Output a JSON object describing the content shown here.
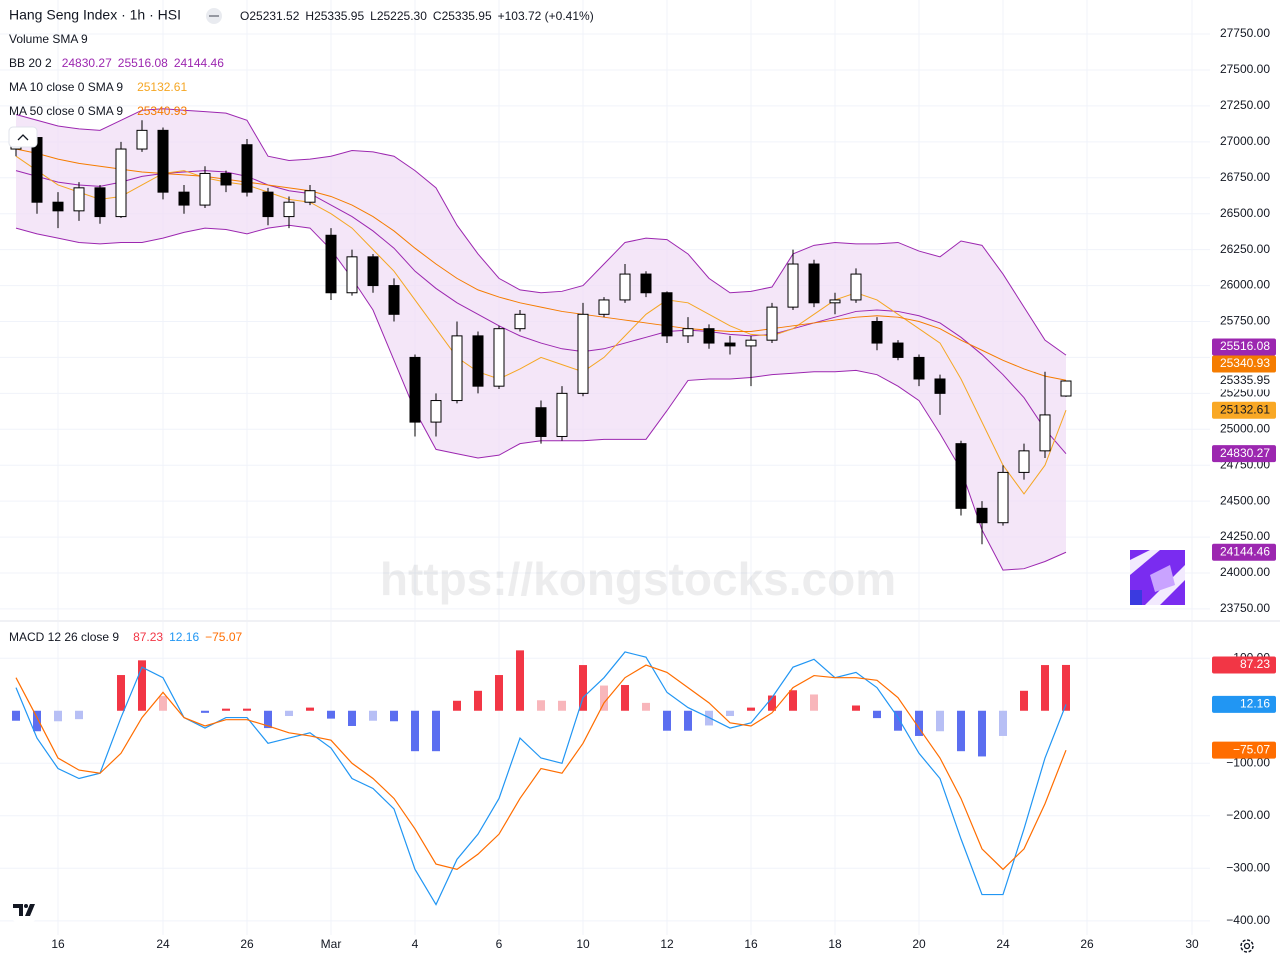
{
  "header": {
    "title": "Hang Seng Index · 1h · HSI",
    "ohlc": [
      {
        "label": "O",
        "value": "25231.52"
      },
      {
        "label": "H",
        "value": "25335.95"
      },
      {
        "label": "L",
        "value": "25225.30"
      },
      {
        "label": "C",
        "value": "25335.95"
      }
    ],
    "change": "+103.72 (+0.41%)"
  },
  "watermark": "https://kongstocks.com",
  "chart_data": [
    {
      "type": "candlestick",
      "volume_label": "Volume SMA 9",
      "categories": [
        null,
        null,
        "16",
        null,
        null,
        null,
        null,
        "24",
        null,
        null,
        null,
        "26",
        null,
        null,
        null,
        "Mar",
        null,
        null,
        null,
        "4",
        null,
        null,
        null,
        "6",
        null,
        null,
        null,
        "10",
        null,
        null,
        null,
        "12",
        null,
        null,
        null,
        "16",
        null,
        null,
        null,
        "18",
        null,
        null,
        null,
        "20",
        null,
        null,
        null,
        "24",
        null,
        null,
        null,
        "26",
        null,
        null,
        null,
        null,
        "30"
      ],
      "open": [
        26950,
        27030,
        26580,
        26520,
        26680,
        26480,
        26950,
        27080,
        26650,
        26560,
        26780,
        26980,
        26650,
        26480,
        26580,
        26350,
        25950,
        26200,
        26000,
        25500,
        25050,
        25200,
        25650,
        25300,
        25700,
        25150,
        24950,
        25250,
        25800,
        25900,
        26080,
        25950,
        25650,
        25700,
        25600,
        25580,
        25620,
        25850,
        26150,
        25880,
        25900,
        25750,
        25600,
        25500,
        25350,
        24900,
        24450,
        24350,
        24700,
        24850,
        25231.52,
        null,
        null,
        null,
        null,
        null,
        null
      ],
      "high": [
        27080,
        27050,
        26650,
        26720,
        26700,
        27000,
        27150,
        27100,
        26700,
        26830,
        26800,
        27020,
        26680,
        26620,
        26700,
        26400,
        26250,
        26220,
        26050,
        25520,
        25250,
        25750,
        25680,
        25720,
        25830,
        25200,
        25300,
        25880,
        25920,
        26150,
        26100,
        25960,
        25780,
        25730,
        25650,
        25650,
        25880,
        26250,
        26180,
        25950,
        26120,
        25780,
        25620,
        25520,
        25380,
        24920,
        24500,
        24750,
        24900,
        25400,
        25335.95,
        null,
        null,
        null,
        null,
        null,
        null
      ],
      "low": [
        26900,
        26500,
        26400,
        26450,
        26430,
        26470,
        26930,
        26600,
        26500,
        26540,
        26650,
        26620,
        26420,
        26400,
        26560,
        25900,
        25930,
        25950,
        25750,
        24950,
        24950,
        25180,
        25250,
        25280,
        25680,
        24900,
        24920,
        25230,
        25780,
        25880,
        25920,
        25600,
        25600,
        25560,
        25520,
        25300,
        25600,
        25830,
        25850,
        25800,
        25880,
        25550,
        25480,
        25300,
        25100,
        24400,
        24200,
        24330,
        24650,
        24800,
        25225.3,
        null,
        null,
        null,
        null,
        null,
        null
      ],
      "close": [
        27030,
        26580,
        26520,
        26680,
        26480,
        26950,
        27080,
        26650,
        26560,
        26780,
        26700,
        26650,
        26480,
        26580,
        26660,
        25950,
        26200,
        26000,
        25800,
        25050,
        25200,
        25650,
        25300,
        25700,
        25800,
        24950,
        25250,
        25800,
        25900,
        26080,
        25950,
        25650,
        25700,
        25600,
        25580,
        25620,
        25850,
        26150,
        25880,
        25900,
        26080,
        25600,
        25500,
        25350,
        25250,
        24450,
        24350,
        24700,
        24850,
        25100,
        25335.95,
        null,
        null,
        null,
        null,
        null,
        null
      ],
      "up_color": "#ffffff",
      "down_color": "#000000",
      "border_color": "#000000",
      "bands": {
        "name": "BB 20 2",
        "color": "#9c27b0",
        "fill": "#f0dcf5",
        "legend_values": [
          "24830.27",
          "25516.08",
          "24144.46"
        ],
        "basis": [
          26800,
          26760,
          26720,
          26700,
          26690,
          26720,
          26760,
          26780,
          26790,
          26800,
          26790,
          26760,
          26700,
          26660,
          26640,
          26560,
          26480,
          26380,
          26260,
          26100,
          25980,
          25880,
          25800,
          25720,
          25650,
          25600,
          25560,
          25540,
          25560,
          25600,
          25640,
          25680,
          25690,
          25680,
          25660,
          25650,
          25660,
          25700,
          25740,
          25780,
          25820,
          25830,
          25820,
          25790,
          25740,
          25640,
          25520,
          25380,
          25220,
          25000,
          24830.27,
          null,
          null,
          null,
          null,
          null,
          null
        ],
        "upper": [
          27190,
          27150,
          27110,
          27090,
          27080,
          27150,
          27220,
          27230,
          27220,
          27210,
          27200,
          27150,
          26900,
          26870,
          26880,
          26900,
          26940,
          26930,
          26900,
          26800,
          26680,
          26420,
          26220,
          26050,
          25970,
          25950,
          25960,
          26000,
          26150,
          26300,
          26330,
          26320,
          26220,
          26050,
          25950,
          25960,
          25990,
          26220,
          26280,
          26300,
          26290,
          26290,
          26300,
          26240,
          26200,
          26310,
          26280,
          26080,
          25850,
          25620,
          25516.08,
          null,
          null,
          null,
          null,
          null,
          null
        ],
        "lower": [
          26400,
          26360,
          26330,
          26300,
          26290,
          26300,
          26300,
          26330,
          26370,
          26400,
          26390,
          26360,
          26400,
          26420,
          26400,
          26250,
          26050,
          25830,
          25480,
          25130,
          24860,
          24830,
          24800,
          24820,
          24900,
          24920,
          24920,
          24920,
          24930,
          24930,
          24930,
          25130,
          25340,
          25350,
          25350,
          25360,
          25380,
          25390,
          25400,
          25400,
          25410,
          25380,
          25300,
          25200,
          24970,
          24720,
          24300,
          24020,
          24030,
          24080,
          24144.46,
          null,
          null,
          null,
          null,
          null,
          null
        ]
      },
      "series": [
        {
          "name": "MA 10 close 0 SMA 9",
          "color": "#f5a623",
          "legend_value": "25132.61",
          "values": [
            26900,
            26800,
            26700,
            26650,
            26600,
            26620,
            26700,
            26780,
            26800,
            26750,
            26720,
            26700,
            26650,
            26600,
            26580,
            26500,
            26400,
            26250,
            26100,
            25900,
            25700,
            25500,
            25400,
            25350,
            25420,
            25500,
            25450,
            25400,
            25500,
            25650,
            25800,
            25900,
            25880,
            25800,
            25720,
            25660,
            25650,
            25700,
            25800,
            25900,
            25950,
            25900,
            25800,
            25700,
            25600,
            25350,
            25050,
            24750,
            24550,
            24750,
            25132.61,
            null,
            null,
            null,
            null,
            null,
            null
          ]
        },
        {
          "name": "MA 50 close 0 SMA 9",
          "color": "#f57c00",
          "legend_value": "25340.93",
          "values": [
            26950,
            26920,
            26880,
            26850,
            26830,
            26810,
            26790,
            26780,
            26770,
            26760,
            26740,
            26720,
            26700,
            26680,
            26660,
            26620,
            26560,
            26480,
            26380,
            26260,
            26150,
            26050,
            25970,
            25920,
            25880,
            25850,
            25820,
            25800,
            25780,
            25760,
            25740,
            25720,
            25700,
            25690,
            25680,
            25680,
            25700,
            25720,
            25740,
            25760,
            25780,
            25790,
            25780,
            25750,
            25700,
            25620,
            25550,
            25480,
            25420,
            25370,
            25340.93,
            null,
            null,
            null,
            null,
            null,
            null
          ]
        }
      ],
      "ylim": [
        23673,
        27987
      ],
      "yticks": [
        {
          "value": 27750,
          "label": "27750.00"
        },
        {
          "value": 27500,
          "label": "27500.00"
        },
        {
          "value": 27250,
          "label": "27250.00"
        },
        {
          "value": 27000,
          "label": "27000.00"
        },
        {
          "value": 26750,
          "label": "26750.00"
        },
        {
          "value": 26500,
          "label": "26500.00"
        },
        {
          "value": 26250,
          "label": "26250.00"
        },
        {
          "value": 26000,
          "label": "26000.00"
        },
        {
          "value": 25750,
          "label": "25750.00"
        },
        {
          "value": 25500,
          "label": "25500.00"
        },
        {
          "value": 25250,
          "label": "25250.00"
        },
        {
          "value": 25000,
          "label": "25000.00"
        },
        {
          "value": 24750,
          "label": "24750.00"
        },
        {
          "value": 24500,
          "label": "24500.00"
        },
        {
          "value": 24250,
          "label": "24250.00"
        },
        {
          "value": 24000,
          "label": "24000.00"
        },
        {
          "value": 23750,
          "label": "23750.00"
        }
      ],
      "grid": true,
      "axis_labels": [
        {
          "value": 25516.08,
          "label": "25516.08",
          "bg": "#9c27b0",
          "fg": "#ffffff"
        },
        {
          "value": 25340.93,
          "label": "25340.93",
          "bg": "#f57c00",
          "fg": "#ffffff"
        },
        {
          "value": 25335.95,
          "label": "25335.95",
          "bg": "#ffffff",
          "fg": "#131722"
        },
        {
          "value": 25132.61,
          "label": "25132.61",
          "bg": "#f9a825",
          "fg": "#131722"
        },
        {
          "value": 24830.27,
          "label": "24830.27",
          "bg": "#9c27b0",
          "fg": "#ffffff"
        },
        {
          "value": 24144.46,
          "label": "24144.46",
          "bg": "#9c27b0",
          "fg": "#ffffff"
        }
      ]
    },
    {
      "type": "macd",
      "title": "MACD 12 26 close 9",
      "legend_values": [
        {
          "label": "87.23",
          "color": "#f23645"
        },
        {
          "label": "12.16",
          "color": "#2196f3"
        },
        {
          "label": "−75.07",
          "color": "#ff6d00"
        }
      ],
      "histogram": {
        "colors": [
          "#f23645",
          "#f8b6bb",
          "#5b6ef0",
          "#b7bff5"
        ],
        "values": [
          -19,
          -39,
          -20,
          -16,
          0,
          68,
          96,
          28,
          0,
          -4,
          4,
          4,
          -33,
          -10,
          6,
          -15,
          -29,
          -19,
          -20,
          -77,
          -77,
          19,
          38,
          68,
          115,
          20,
          19,
          87,
          48,
          49,
          15,
          -38,
          -38,
          -28,
          -10,
          6,
          29,
          39,
          31,
          0,
          10,
          -14,
          -38,
          -48,
          -39,
          -77,
          -87,
          -48,
          38,
          87,
          87.23,
          null,
          null,
          null,
          null,
          null,
          null
        ]
      },
      "series": [
        {
          "color": "#2196f3",
          "values": [
            44,
            -52,
            -110,
            -129,
            -119,
            -13,
            83,
            63,
            -13,
            -33,
            -13,
            -13,
            -62,
            -52,
            -42,
            -71,
            -129,
            -148,
            -187,
            -302,
            -369,
            -283,
            -235,
            -167,
            -52,
            -90,
            -100,
            25,
            63,
            112,
            102,
            35,
            6,
            -13,
            -33,
            -23,
            25,
            83,
            98,
            63,
            73,
            44,
            -13,
            -81,
            -129,
            -244,
            -350,
            -350,
            -225,
            -90,
            12.16,
            null,
            null,
            null,
            null,
            null,
            null
          ]
        },
        {
          "color": "#ff6d00",
          "values": [
            63,
            -13,
            -90,
            -113,
            -119,
            -81,
            -13,
            35,
            -13,
            -29,
            -17,
            -17,
            -29,
            -42,
            -48,
            -56,
            -100,
            -129,
            -167,
            -225,
            -292,
            -302,
            -273,
            -235,
            -167,
            -110,
            -119,
            -62,
            15,
            63,
            87,
            73,
            44,
            15,
            -23,
            -29,
            -4,
            44,
            67,
            63,
            63,
            58,
            25,
            -33,
            -90,
            -167,
            -263,
            -302,
            -263,
            -177,
            -75.07,
            null,
            null,
            null,
            null,
            null,
            null
          ]
        }
      ],
      "ylim": [
        -427,
        169
      ],
      "yticks": [
        {
          "value": 100,
          "label": "100.00"
        },
        {
          "value": -100,
          "label": "−100.00"
        },
        {
          "value": -200,
          "label": "−200.00"
        },
        {
          "value": -300,
          "label": "−300.00"
        },
        {
          "value": -400,
          "label": "−400.00"
        }
      ],
      "grid": true,
      "axis_labels": [
        {
          "value": 87.23,
          "label": "87.23",
          "bg": "#f23645",
          "fg": "#ffffff"
        },
        {
          "value": 12.16,
          "label": "12.16",
          "bg": "#2196f3",
          "fg": "#ffffff"
        },
        {
          "value": -75.07,
          "label": "−75.07",
          "bg": "#ff6d00",
          "fg": "#ffffff"
        }
      ]
    }
  ]
}
